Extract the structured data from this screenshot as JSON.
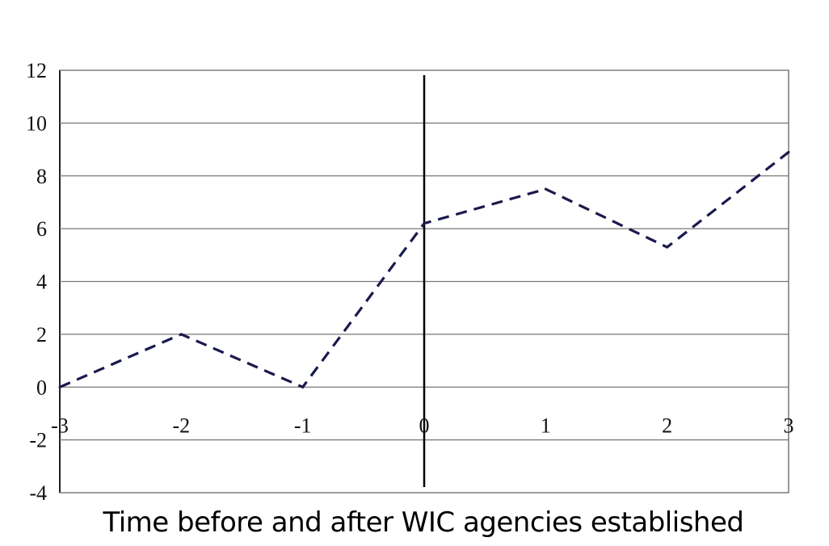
{
  "chart_data": {
    "type": "line",
    "title": "",
    "xlabel": "Time before and after WIC agencies established",
    "ylabel": "",
    "xlim": [
      -3,
      3
    ],
    "ylim": [
      -4,
      12
    ],
    "x_ticks": [
      "-3",
      "-2",
      "-1",
      "0",
      "1",
      "2",
      "3"
    ],
    "y_ticks": [
      "12",
      "10",
      "8",
      "6",
      "4",
      "2",
      "0",
      "-2",
      "-4"
    ],
    "grid": "horizontal",
    "legend": "none",
    "reference_line_x": 0,
    "line_color": "#1a1a4e",
    "line_style": "dashed",
    "series": [
      {
        "x": [
          -3,
          -2,
          -1,
          0,
          1,
          2,
          3
        ],
        "values": [
          0,
          2,
          0,
          6.2,
          7.5,
          5.3,
          8.9
        ]
      }
    ]
  }
}
